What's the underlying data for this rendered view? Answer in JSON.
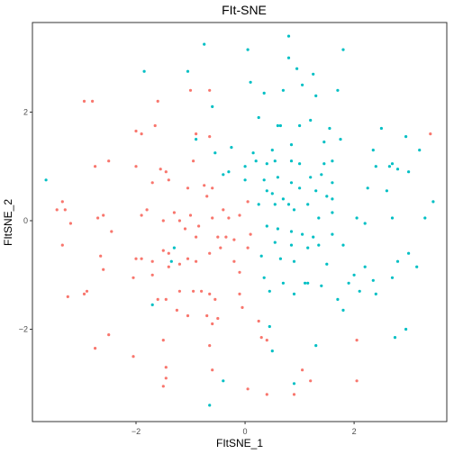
{
  "chart_data": {
    "type": "scatter",
    "title": "FIt-SNE",
    "xlabel": "FItSNE_1",
    "ylabel": "FItSNE_2",
    "xlim": [
      -3.9,
      3.7
    ],
    "ylim": [
      -3.7,
      3.65
    ],
    "xticks": [
      -2,
      0,
      2
    ],
    "yticks": [
      -2,
      0,
      2
    ],
    "xtick_labels": [
      "−2",
      "0",
      "2"
    ],
    "ytick_labels": [
      "−2",
      "0",
      "2"
    ],
    "grid": false,
    "legend": "none",
    "series": [
      {
        "color": "#F8766D",
        "points": [
          [
            -2.95,
            2.2
          ],
          [
            -2.8,
            2.2
          ],
          [
            -1.6,
            2.2
          ],
          [
            -1.0,
            2.4
          ],
          [
            -0.65,
            2.4
          ],
          [
            -2.0,
            1.65
          ],
          [
            -1.9,
            1.6
          ],
          [
            -1.65,
            1.75
          ],
          [
            -0.9,
            1.6
          ],
          [
            -0.65,
            1.55
          ],
          [
            -2.5,
            1.1
          ],
          [
            -2.75,
            1.0
          ],
          [
            -2.0,
            1.0
          ],
          [
            -0.95,
            1.1
          ],
          [
            -1.55,
            0.95
          ],
          [
            -1.45,
            0.9
          ],
          [
            -1.7,
            0.7
          ],
          [
            -1.4,
            0.75
          ],
          [
            -1.05,
            0.6
          ],
          [
            -0.75,
            0.65
          ],
          [
            -0.6,
            0.6
          ],
          [
            -0.7,
            0.45
          ],
          [
            -3.35,
            0.35
          ],
          [
            -3.45,
            0.2
          ],
          [
            -3.3,
            0.2
          ],
          [
            -3.2,
            -0.05
          ],
          [
            -2.7,
            0.05
          ],
          [
            -2.6,
            0.1
          ],
          [
            -2.45,
            -0.2
          ],
          [
            -1.8,
            0.2
          ],
          [
            -1.9,
            0.1
          ],
          [
            -1.5,
            0.0
          ],
          [
            -1.3,
            0.15
          ],
          [
            -1.2,
            0.0
          ],
          [
            -1.0,
            0.1
          ],
          [
            -0.85,
            -0.1
          ],
          [
            -0.6,
            0.05
          ],
          [
            -0.4,
            0.2
          ],
          [
            -0.3,
            0.05
          ],
          [
            -0.1,
            0.1
          ],
          [
            0.05,
            0.35
          ],
          [
            -1.1,
            -0.15
          ],
          [
            -0.9,
            -0.3
          ],
          [
            -0.5,
            -0.3
          ],
          [
            -0.35,
            -0.3
          ],
          [
            -0.2,
            -0.35
          ],
          [
            0.05,
            -0.5
          ],
          [
            0.1,
            -0.25
          ],
          [
            -3.35,
            -0.45
          ],
          [
            -2.65,
            -0.65
          ],
          [
            -2.6,
            -0.9
          ],
          [
            -2.0,
            -0.7
          ],
          [
            -1.9,
            -0.7
          ],
          [
            -1.7,
            -0.75
          ],
          [
            -1.5,
            -0.55
          ],
          [
            -1.4,
            -0.6
          ],
          [
            -1.4,
            -0.85
          ],
          [
            -1.2,
            -0.8
          ],
          [
            -1.05,
            -0.7
          ],
          [
            -0.9,
            -0.75
          ],
          [
            -0.65,
            -0.6
          ],
          [
            -0.45,
            -0.5
          ],
          [
            -0.2,
            -0.75
          ],
          [
            -0.1,
            -0.95
          ],
          [
            -1.7,
            -1.0
          ],
          [
            -2.05,
            -1.05
          ],
          [
            -3.25,
            -1.4
          ],
          [
            -2.95,
            -1.35
          ],
          [
            -2.9,
            -1.3
          ],
          [
            -1.6,
            -1.45
          ],
          [
            -1.45,
            -1.45
          ],
          [
            -1.2,
            -1.3
          ],
          [
            -0.95,
            -1.3
          ],
          [
            -0.8,
            -1.3
          ],
          [
            -0.65,
            -1.35
          ],
          [
            -0.55,
            -1.45
          ],
          [
            -0.1,
            -1.35
          ],
          [
            -0.05,
            -1.6
          ],
          [
            -0.6,
            -1.9
          ],
          [
            -0.5,
            -1.8
          ],
          [
            -1.25,
            -1.65
          ],
          [
            -1.05,
            -1.75
          ],
          [
            -0.7,
            -1.75
          ],
          [
            0.25,
            -1.85
          ],
          [
            -2.75,
            -2.35
          ],
          [
            -2.5,
            -2.1
          ],
          [
            -2.05,
            -2.5
          ],
          [
            -1.5,
            -2.2
          ],
          [
            -0.65,
            -2.3
          ],
          [
            0.3,
            -2.15
          ],
          [
            0.4,
            -2.2
          ],
          [
            -1.45,
            -2.7
          ],
          [
            -1.45,
            -2.9
          ],
          [
            -1.5,
            -3.05
          ],
          [
            -0.6,
            -2.75
          ],
          [
            0.05,
            -3.1
          ],
          [
            0.4,
            -3.2
          ],
          [
            0.9,
            -3.2
          ],
          [
            1.05,
            -2.75
          ],
          [
            1.2,
            -2.95
          ],
          [
            2.05,
            -2.2
          ],
          [
            2.05,
            -2.95
          ],
          [
            3.4,
            1.6
          ]
        ]
      },
      {
        "color": "#00BFC4",
        "points": [
          [
            -3.65,
            0.75
          ],
          [
            -1.85,
            2.75
          ],
          [
            -1.05,
            2.75
          ],
          [
            -0.75,
            3.25
          ],
          [
            0.05,
            3.15
          ],
          [
            0.8,
            3.4
          ],
          [
            0.8,
            3.0
          ],
          [
            0.95,
            2.8
          ],
          [
            1.25,
            2.7
          ],
          [
            1.8,
            3.15
          ],
          [
            0.1,
            2.55
          ],
          [
            0.35,
            2.35
          ],
          [
            0.7,
            2.4
          ],
          [
            1.05,
            2.5
          ],
          [
            1.3,
            2.3
          ],
          [
            1.7,
            2.4
          ],
          [
            -0.6,
            2.1
          ],
          [
            -0.9,
            1.5
          ],
          [
            0.25,
            1.9
          ],
          [
            0.6,
            1.75
          ],
          [
            0.65,
            1.75
          ],
          [
            1.0,
            1.75
          ],
          [
            1.2,
            1.85
          ],
          [
            1.55,
            1.7
          ],
          [
            1.75,
            1.5
          ],
          [
            2.5,
            1.7
          ],
          [
            2.35,
            1.3
          ],
          [
            2.95,
            1.55
          ],
          [
            3.2,
            1.3
          ],
          [
            -0.55,
            1.25
          ],
          [
            -0.25,
            1.35
          ],
          [
            0.15,
            1.25
          ],
          [
            0.5,
            1.3
          ],
          [
            0.85,
            1.4
          ],
          [
            1.45,
            1.45
          ],
          [
            1.6,
            1.1
          ],
          [
            0.0,
            1.0
          ],
          [
            0.2,
            1.1
          ],
          [
            0.4,
            1.05
          ],
          [
            0.55,
            1.1
          ],
          [
            0.85,
            1.1
          ],
          [
            1.0,
            1.05
          ],
          [
            1.45,
            1.05
          ],
          [
            2.4,
            1.0
          ],
          [
            2.65,
            1.0
          ],
          [
            2.7,
            1.05
          ],
          [
            2.8,
            0.95
          ],
          [
            3.0,
            0.9
          ],
          [
            -0.4,
            0.85
          ],
          [
            -0.3,
            0.9
          ],
          [
            0.0,
            0.75
          ],
          [
            0.35,
            0.75
          ],
          [
            0.6,
            0.8
          ],
          [
            0.85,
            0.7
          ],
          [
            1.2,
            0.8
          ],
          [
            1.4,
            0.85
          ],
          [
            1.6,
            0.7
          ],
          [
            2.25,
            0.6
          ],
          [
            2.6,
            0.55
          ],
          [
            3.45,
            0.35
          ],
          [
            0.4,
            0.55
          ],
          [
            0.5,
            0.5
          ],
          [
            0.7,
            0.4
          ],
          [
            1.0,
            0.6
          ],
          [
            1.3,
            0.55
          ],
          [
            1.5,
            0.45
          ],
          [
            1.6,
            0.4
          ],
          [
            0.25,
            0.3
          ],
          [
            0.55,
            0.3
          ],
          [
            0.8,
            0.3
          ],
          [
            0.9,
            0.2
          ],
          [
            1.15,
            0.3
          ],
          [
            1.35,
            0.05
          ],
          [
            1.6,
            0.15
          ],
          [
            2.05,
            0.05
          ],
          [
            2.2,
            -0.05
          ],
          [
            2.7,
            0.05
          ],
          [
            3.3,
            0.05
          ],
          [
            0.4,
            -0.1
          ],
          [
            0.6,
            -0.15
          ],
          [
            0.85,
            -0.2
          ],
          [
            1.05,
            -0.25
          ],
          [
            1.25,
            -0.3
          ],
          [
            1.6,
            -0.25
          ],
          [
            0.55,
            -0.4
          ],
          [
            0.85,
            -0.45
          ],
          [
            1.15,
            -0.5
          ],
          [
            1.35,
            -0.45
          ],
          [
            1.8,
            -0.45
          ],
          [
            0.3,
            -0.65
          ],
          [
            0.65,
            -0.7
          ],
          [
            0.9,
            -0.75
          ],
          [
            1.5,
            -0.8
          ],
          [
            2.2,
            -0.85
          ],
          [
            2.8,
            -0.75
          ],
          [
            3.0,
            -0.6
          ],
          [
            3.15,
            -0.85
          ],
          [
            -1.3,
            -0.5
          ],
          [
            -1.35,
            -0.75
          ],
          [
            0.35,
            -1.05
          ],
          [
            0.7,
            -1.15
          ],
          [
            1.1,
            -1.15
          ],
          [
            1.15,
            -1.15
          ],
          [
            1.4,
            -1.2
          ],
          [
            1.9,
            -1.15
          ],
          [
            2.0,
            -1.0
          ],
          [
            2.35,
            -1.1
          ],
          [
            2.7,
            -1.05
          ],
          [
            0.45,
            -1.3
          ],
          [
            0.9,
            -1.35
          ],
          [
            1.7,
            -1.45
          ],
          [
            1.8,
            -1.65
          ],
          [
            2.1,
            -1.3
          ],
          [
            2.4,
            -1.35
          ],
          [
            -1.7,
            -1.55
          ],
          [
            0.45,
            -1.95
          ],
          [
            2.75,
            -2.15
          ],
          [
            2.95,
            -2.0
          ],
          [
            0.5,
            -2.4
          ],
          [
            1.3,
            -2.3
          ],
          [
            0.9,
            -3.0
          ],
          [
            -0.4,
            -2.95
          ],
          [
            -0.65,
            -3.4
          ]
        ]
      }
    ]
  }
}
